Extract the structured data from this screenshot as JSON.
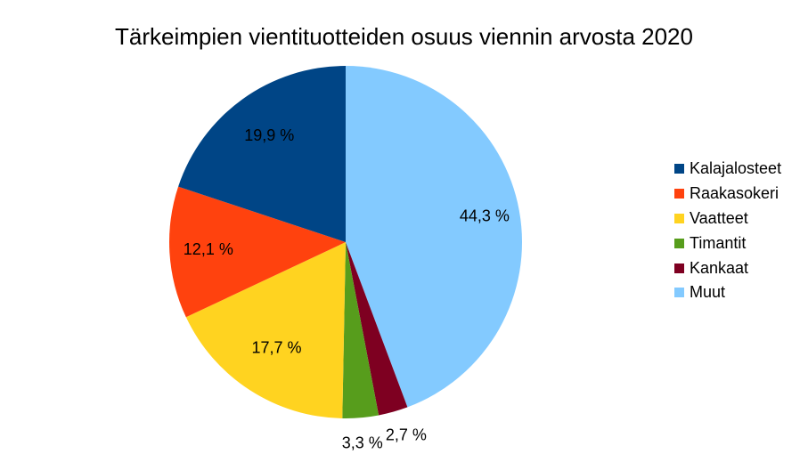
{
  "chart_data": {
    "type": "pie",
    "title": "Tärkeimpien vientituotteiden osuus viennin arvosta 2020",
    "slices": [
      {
        "name": "Kalajalosteet",
        "value": 19.9,
        "label": "19,9 %",
        "color": "#004586"
      },
      {
        "name": "Raakasokeri",
        "value": 12.1,
        "label": "12,1 %",
        "color": "#ff420e"
      },
      {
        "name": "Vaatteet",
        "value": 17.7,
        "label": "17,7 %",
        "color": "#ffd320"
      },
      {
        "name": "Timantit",
        "value": 3.3,
        "label": "3,3 %",
        "color": "#579d1c"
      },
      {
        "name": "Kankaat",
        "value": 2.7,
        "label": "2,7 %",
        "color": "#7e0021"
      },
      {
        "name": "Muut",
        "value": 44.3,
        "label": "44,3 %",
        "color": "#83caff"
      }
    ],
    "legend_placement": "right"
  }
}
